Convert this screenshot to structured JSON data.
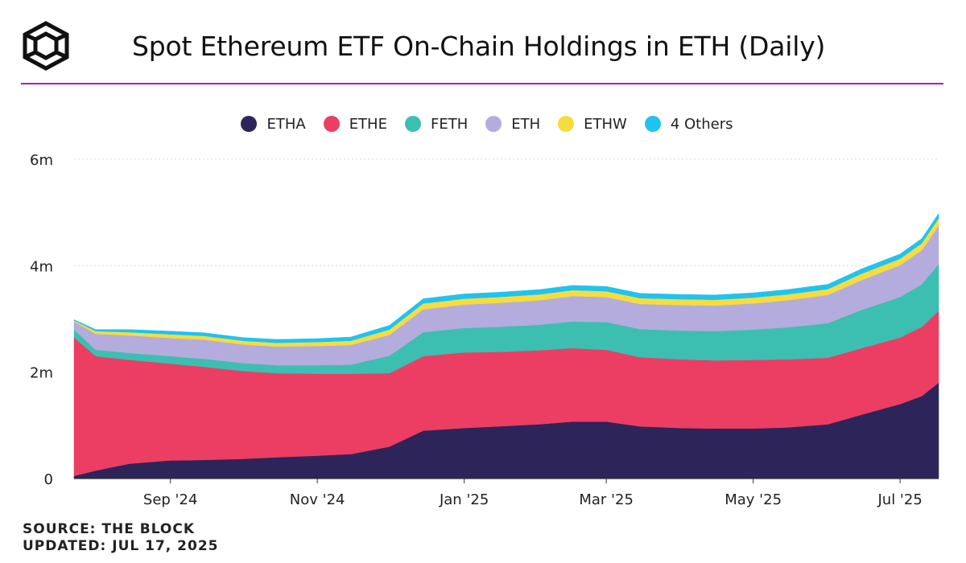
{
  "header": {
    "title": "Spot Ethereum ETF On-Chain Holdings in ETH (Daily)",
    "logo_icon": "the-block-cube-logo"
  },
  "colors": {
    "accent_rule": "#a21fc9",
    "ETHA": "#2d2559",
    "ETHE": "#ec3d63",
    "FETH": "#3cbfb0",
    "ETH": "#b4acdc",
    "ETHW": "#f6dc3f",
    "others": "#20c3ee"
  },
  "chart_data": {
    "type": "area",
    "stacked": true,
    "title": "Spot Ethereum ETF On-Chain Holdings in ETH (Daily)",
    "x_type": "date",
    "x_ticks": [
      "Sep '24",
      "Nov '24",
      "Jan '25",
      "Mar '25",
      "May '25",
      "Jul '25"
    ],
    "y_ticks": [
      "0",
      "2m",
      "4m",
      "6m"
    ],
    "ylim": [
      0,
      6000000
    ],
    "xlim": [
      "2024-07-23",
      "2025-07-17"
    ],
    "grid": true,
    "legend_position": "top",
    "x": [
      "2024-07-23",
      "2024-08-01",
      "2024-08-15",
      "2024-09-01",
      "2024-09-15",
      "2024-10-01",
      "2024-10-15",
      "2024-11-01",
      "2024-11-15",
      "2024-12-01",
      "2024-12-15",
      "2025-01-01",
      "2025-01-15",
      "2025-02-01",
      "2025-02-15",
      "2025-03-01",
      "2025-03-15",
      "2025-04-01",
      "2025-04-15",
      "2025-05-01",
      "2025-05-15",
      "2025-06-01",
      "2025-06-15",
      "2025-07-01",
      "2025-07-10",
      "2025-07-17"
    ],
    "series": [
      {
        "name": "ETHA",
        "color": "#2d2559",
        "values": [
          50000,
          150000,
          280000,
          340000,
          350000,
          370000,
          400000,
          430000,
          460000,
          600000,
          900000,
          950000,
          980000,
          1020000,
          1070000,
          1070000,
          980000,
          950000,
          940000,
          940000,
          960000,
          1020000,
          1200000,
          1400000,
          1550000,
          1800000
        ]
      },
      {
        "name": "ETHE",
        "color": "#ec3d63",
        "values": [
          2600000,
          2150000,
          1950000,
          1820000,
          1750000,
          1650000,
          1580000,
          1540000,
          1510000,
          1380000,
          1400000,
          1420000,
          1400000,
          1390000,
          1380000,
          1350000,
          1300000,
          1290000,
          1280000,
          1290000,
          1280000,
          1250000,
          1250000,
          1250000,
          1300000,
          1350000
        ]
      },
      {
        "name": "FETH",
        "color": "#3cbfb0",
        "values": [
          150000,
          120000,
          130000,
          140000,
          150000,
          150000,
          150000,
          160000,
          170000,
          330000,
          450000,
          460000,
          470000,
          480000,
          500000,
          520000,
          530000,
          540000,
          550000,
          570000,
          600000,
          650000,
          720000,
          760000,
          800000,
          880000
        ]
      },
      {
        "name": "ETH",
        "color": "#b4acdc",
        "values": [
          150000,
          300000,
          330000,
          340000,
          360000,
          350000,
          350000,
          360000,
          370000,
          390000,
          430000,
          440000,
          450000,
          460000,
          480000,
          470000,
          470000,
          480000,
          480000,
          490000,
          510000,
          530000,
          560000,
          600000,
          640000,
          720000
        ]
      },
      {
        "name": "ETHW",
        "color": "#f6dc3f",
        "values": [
          20000,
          50000,
          60000,
          70000,
          70000,
          70000,
          70000,
          75000,
          80000,
          100000,
          110000,
          110000,
          110000,
          110000,
          110000,
          110000,
          110000,
          110000,
          110000,
          110000,
          110000,
          110000,
          120000,
          120000,
          130000,
          140000
        ]
      },
      {
        "name": "4 Others",
        "color": "#20c3ee",
        "values": [
          15000,
          30000,
          50000,
          60000,
          60000,
          60000,
          65000,
          65000,
          70000,
          80000,
          90000,
          90000,
          90000,
          90000,
          90000,
          90000,
          90000,
          90000,
          90000,
          90000,
          90000,
          90000,
          90000,
          90000,
          90000,
          90000
        ]
      }
    ]
  },
  "footer": {
    "source": "SOURCE: THE BLOCK",
    "updated": "UPDATED: JUL 17, 2025"
  }
}
